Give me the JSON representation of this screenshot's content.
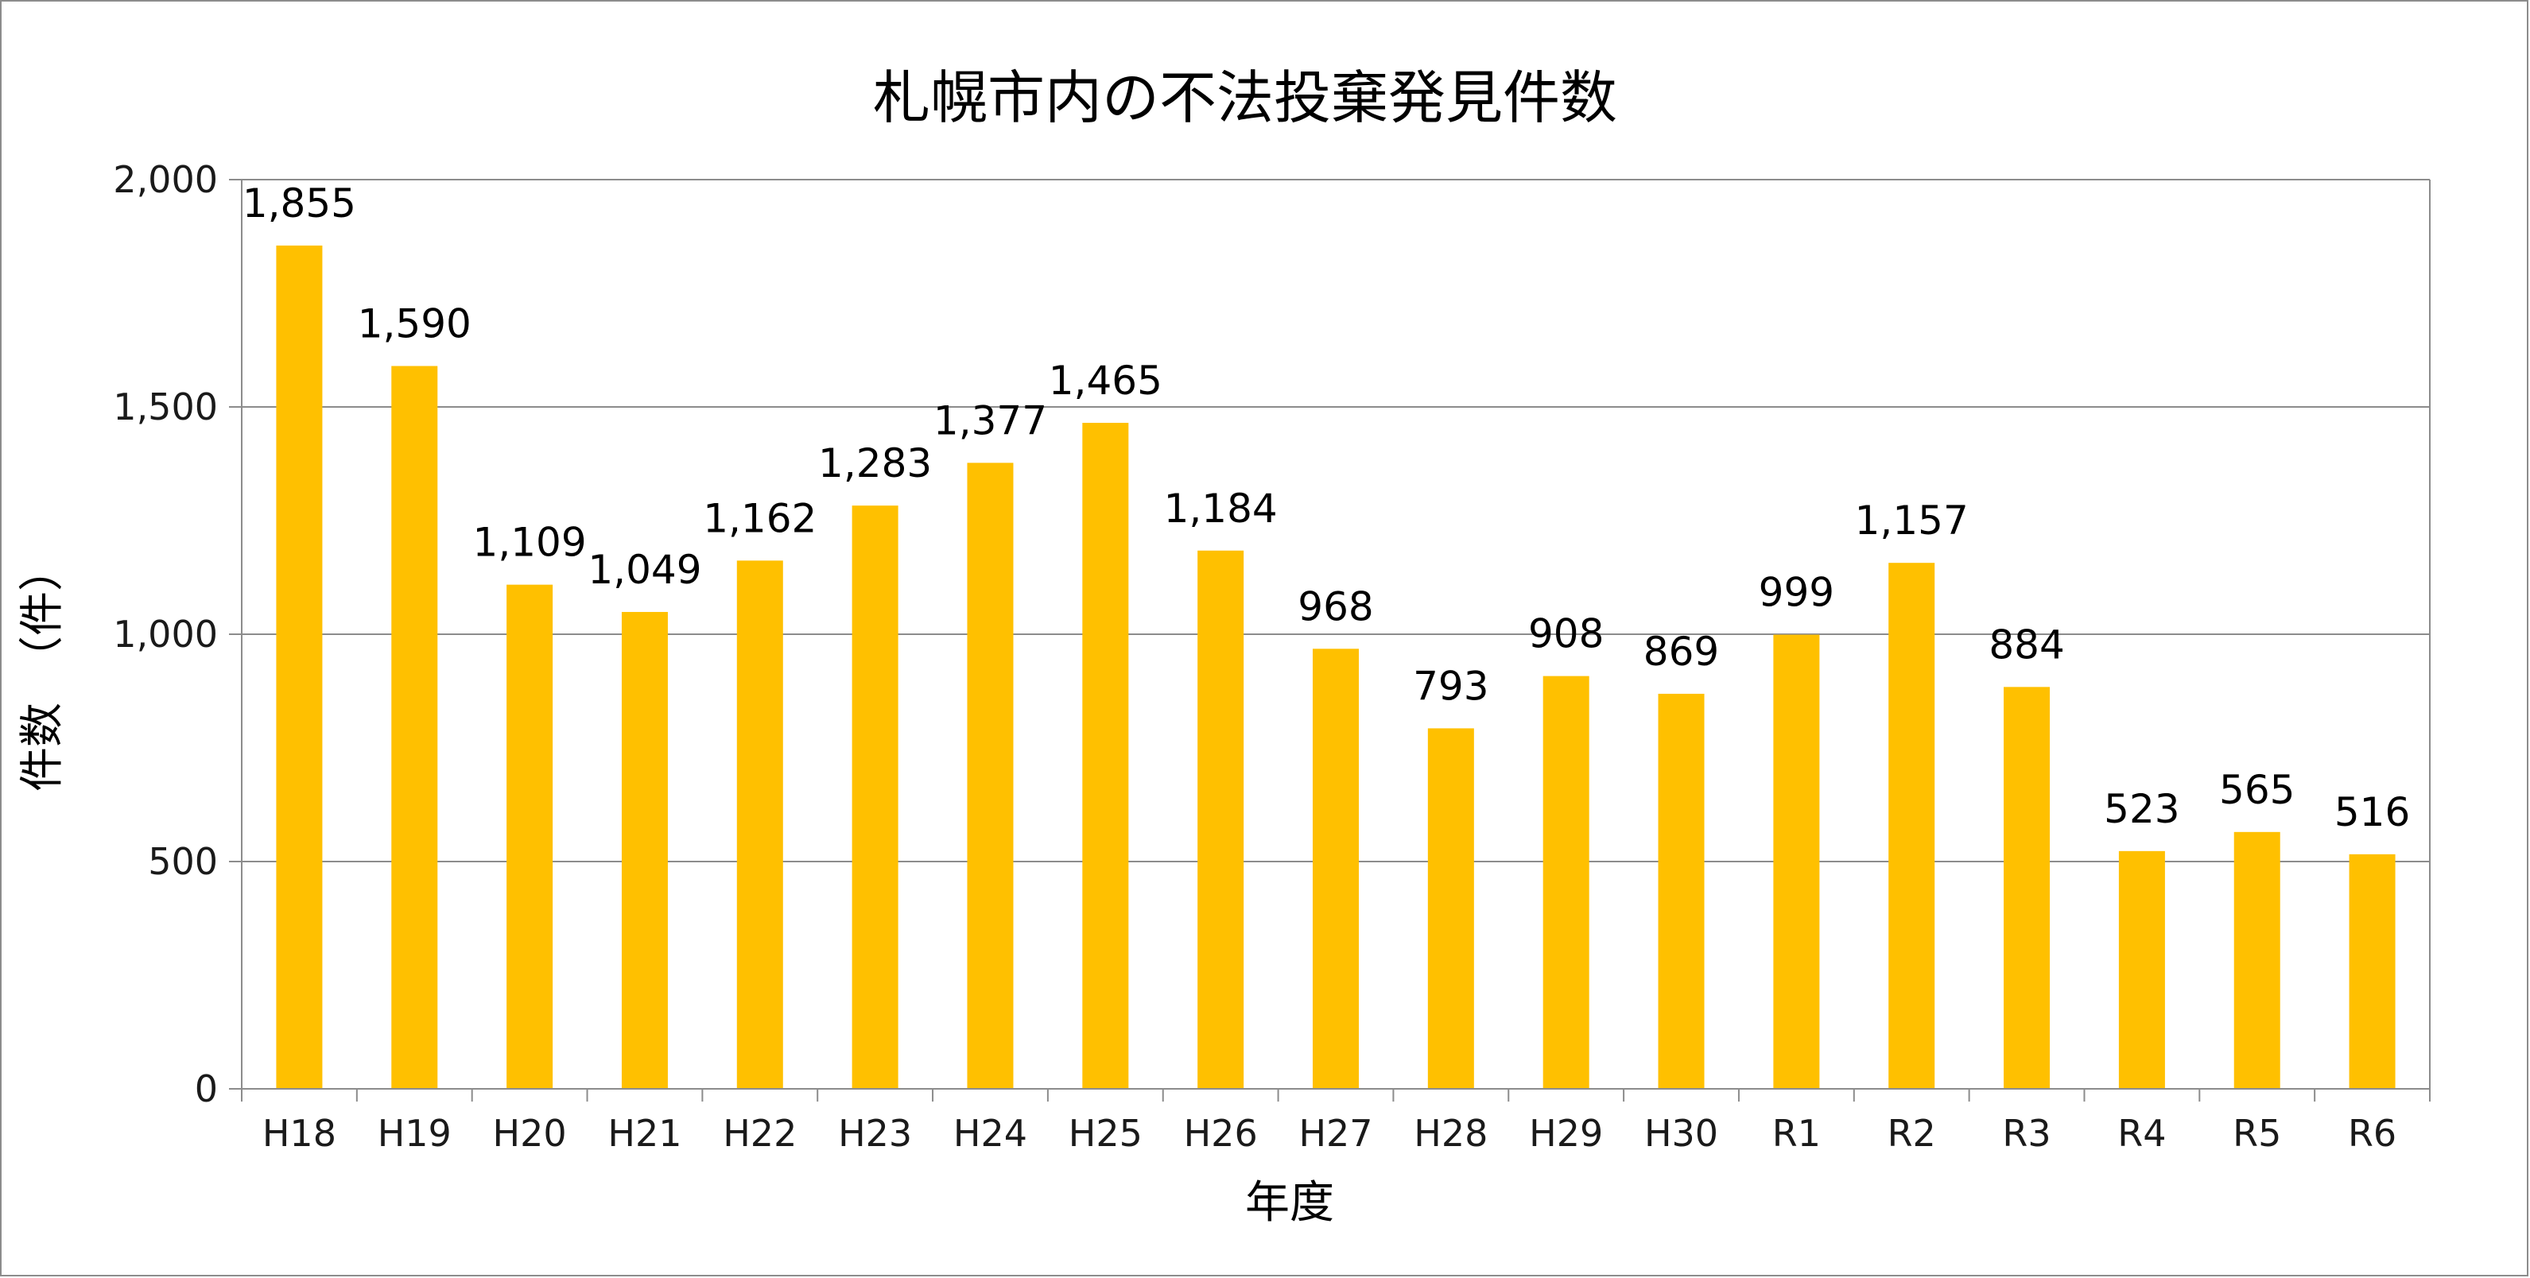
{
  "chart_data": {
    "type": "bar",
    "title": "札幌市内の不法投棄発見件数",
    "xlabel": "年度",
    "ylabel": "件数　（件）",
    "categories": [
      "H18",
      "H19",
      "H20",
      "H21",
      "H22",
      "H23",
      "H24",
      "H25",
      "H26",
      "H27",
      "H28",
      "H29",
      "H30",
      "R1",
      "R2",
      "R3",
      "R4",
      "R5",
      "R6"
    ],
    "values": [
      1855,
      1590,
      1109,
      1049,
      1162,
      1283,
      1377,
      1465,
      1184,
      968,
      793,
      908,
      869,
      999,
      1157,
      884,
      523,
      565,
      516
    ],
    "value_labels": [
      "1,855",
      "1,590",
      "1,109",
      "1,049",
      "1,162",
      "1,283",
      "1,377",
      "1,465",
      "1,184",
      "968",
      "793",
      "908",
      "869",
      "999",
      "1,157",
      "884",
      "523",
      "565",
      "516"
    ],
    "ylim": [
      0,
      2000
    ],
    "yticks": [
      0,
      500,
      1000,
      1500,
      2000
    ],
    "ytick_labels": [
      "0",
      "500",
      "1,000",
      "1,500",
      "2,000"
    ],
    "grid": true,
    "legend": "none",
    "colors": {
      "bar": "#FFC000",
      "grid": "#8c8c8c",
      "axis": "#8c8c8c",
      "frame": "#8c8c8c"
    }
  }
}
